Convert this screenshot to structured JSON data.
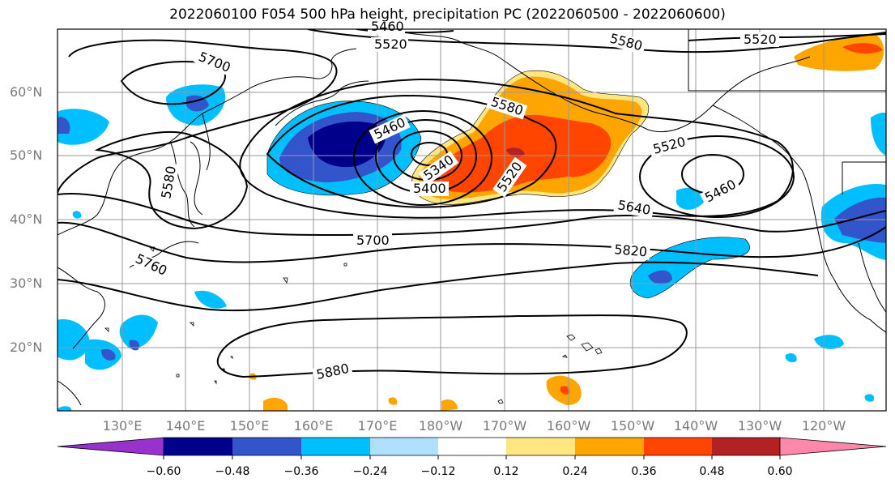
{
  "title": "2022060100 F054 500 hPa height, precipitation PC (2022060500 - 2022060600)",
  "lat_labels": [
    "60°N",
    "50°N",
    "40°N",
    "30°N",
    "20°N"
  ],
  "lon_labels": [
    "130°E",
    "140°E",
    "150°E",
    "160°E",
    "170°E",
    "180°W",
    "170°W",
    "160°W",
    "150°W",
    "140°W",
    "130°W",
    "120°W"
  ],
  "contour_labels": [
    "5460",
    "5520",
    "5580",
    "5700",
    "5580",
    "5520",
    "5580",
    "5460",
    "5340",
    "5400",
    "5520",
    "5520",
    "5460",
    "5640",
    "5700",
    "5760",
    "5820",
    "5880"
  ],
  "colorbar": {
    "ticks": [
      "−0.60",
      "−0.48",
      "−0.36",
      "−0.24",
      "−0.12",
      "0.12",
      "0.24",
      "0.36",
      "0.48",
      "0.60"
    ],
    "colors": [
      "#9932cc",
      "#00008b",
      "#3355cc",
      "#00bfff",
      "#b0e0ff",
      "#ffffff",
      "#ffe680",
      "#ffa500",
      "#ff4500",
      "#b22222",
      "#ff88aa"
    ]
  },
  "palette": {
    "dark_blue": "#00008b",
    "mid_blue": "#3355cc",
    "sky_blue": "#00bfff",
    "light_blue": "#b0e0ff",
    "light_yellow": "#ffe680",
    "orange": "#ffa500",
    "red_orange": "#ff4500",
    "dark_red": "#b22222"
  }
}
